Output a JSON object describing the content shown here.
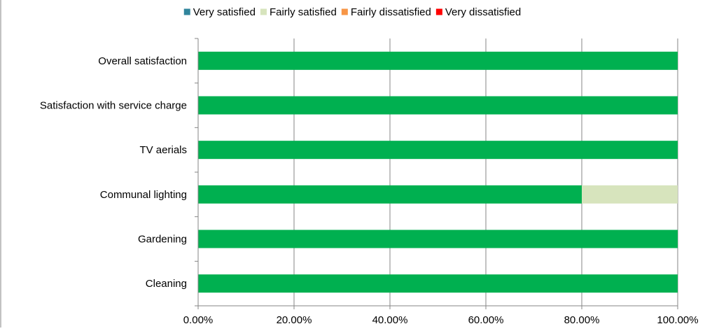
{
  "chart_data": {
    "type": "bar",
    "stacked": true,
    "orientation": "horizontal",
    "categories": [
      "Overall satisfaction",
      "Satisfaction with service charge",
      "TV aerials",
      "Communal lighting",
      "Gardening",
      "Cleaning"
    ],
    "series": [
      {
        "name": "Very satisfied",
        "legend_color": "#31859C",
        "bar_color": "#00B050",
        "values": [
          100,
          100,
          100,
          80,
          100,
          100
        ]
      },
      {
        "name": "Fairly satisfied",
        "legend_color": "#D7E4BD",
        "bar_color": "#D7E4BD",
        "values": [
          0,
          0,
          0,
          20,
          0,
          0
        ]
      },
      {
        "name": "Fairly dissatisfied",
        "legend_color": "#F79646",
        "bar_color": "#F79646",
        "values": [
          0,
          0,
          0,
          0,
          0,
          0
        ]
      },
      {
        "name": "Very dissatisfied",
        "legend_color": "#FF0000",
        "bar_color": "#FF0000",
        "values": [
          0,
          0,
          0,
          0,
          0,
          0
        ]
      }
    ],
    "xlim": [
      0,
      100
    ],
    "x_ticks": [
      "0.00%",
      "20.00%",
      "40.00%",
      "60.00%",
      "80.00%",
      "100.00%"
    ],
    "grid": true,
    "legend_position": "top",
    "title": "",
    "xlabel": "",
    "ylabel": ""
  }
}
